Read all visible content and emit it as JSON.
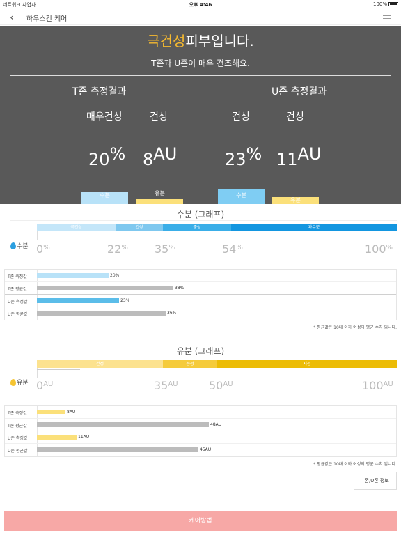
{
  "status_bar": {
    "carrier": "네트워크 사업자",
    "time": "오후 4:46",
    "battery": "100%"
  },
  "nav": {
    "title": "하우스킨 케어"
  },
  "summary": {
    "headline_highlight": "극건성",
    "headline_rest": "피부입니다.",
    "subtitle": "T존과 U존이 매우 건조해요.",
    "t_zone": {
      "title": "T존 측정결과",
      "moisture_label": "매우건성",
      "moisture_value": "20",
      "moisture_unit": "%",
      "oil_label": "건성",
      "oil_value": "8",
      "oil_unit": "AU"
    },
    "u_zone": {
      "title": "U존 측정결과",
      "moisture_label": "건성",
      "moisture_value": "23",
      "moisture_unit": "%",
      "oil_label": "건성",
      "oil_value": "11",
      "oil_unit": "AU"
    },
    "bar_labels": {
      "moisture": "수분",
      "oil": "유분"
    }
  },
  "moisture": {
    "title": "수분 (그래프)",
    "legend": "수분",
    "ranges": [
      {
        "label": "극건성",
        "color": "#c4e6f9"
      },
      {
        "label": "건성",
        "color": "#7fc8ef"
      },
      {
        "label": "중성",
        "color": "#3aaee8"
      },
      {
        "label": "과수분",
        "color": "#1396e0"
      }
    ],
    "ticks": [
      {
        "value": "0",
        "unit": "%"
      },
      {
        "value": "22",
        "unit": "%"
      },
      {
        "value": "35",
        "unit": "%"
      },
      {
        "value": "54",
        "unit": "%"
      },
      {
        "value": "100",
        "unit": "%"
      }
    ],
    "rows": [
      {
        "label": "T존 측정값",
        "value": 20,
        "text": "20%",
        "color": "#b8e2f8"
      },
      {
        "label": "T존 평균값",
        "value": 38,
        "text": "38%",
        "color": "#bcbcbc"
      },
      {
        "label": "U존 측정값",
        "value": 23,
        "text": "23%",
        "color": "#5bbde9"
      },
      {
        "label": "U존 평균값",
        "value": 36,
        "text": "36%",
        "color": "#bcbcbc"
      }
    ],
    "note": "* 평균값은 10대 이하 여성의 평균 수치 입니다."
  },
  "oil": {
    "title": "유분 (그래프)",
    "legend": "유분",
    "ranges": [
      {
        "label": "건성",
        "color": "#fce28f"
      },
      {
        "label": "중성",
        "color": "#f5cb3b"
      },
      {
        "label": "지성",
        "color": "#ecbc06"
      }
    ],
    "ticks": [
      {
        "value": "0",
        "unit": "AU"
      },
      {
        "value": "35",
        "unit": "AU"
      },
      {
        "value": "50",
        "unit": "AU"
      },
      {
        "value": "100",
        "unit": "AU"
      }
    ],
    "rows": [
      {
        "label": "T존 측정값",
        "value": 8,
        "text": "8AU",
        "color": "#fbe07a"
      },
      {
        "label": "T존 평균값",
        "value": 48,
        "text": "48AU",
        "color": "#bcbcbc"
      },
      {
        "label": "U존 측정값",
        "value": 11,
        "text": "11AU",
        "color": "#fbe07a"
      },
      {
        "label": "U존 평균값",
        "value": 45,
        "text": "45AU",
        "color": "#bcbcbc"
      }
    ],
    "note": "* 평균값은 10대 이하 여성의 평균 수치 입니다."
  },
  "buttons": {
    "zone_info": "T존,U존 정보",
    "care_method": "케어방법"
  },
  "colors": {
    "headline_accent": "#f5b92f",
    "summary_bg": "#595959",
    "moisture_bar": "#7fcdf3",
    "oil_bar": "#fbe07a",
    "care_button": "#f7a8a6"
  }
}
